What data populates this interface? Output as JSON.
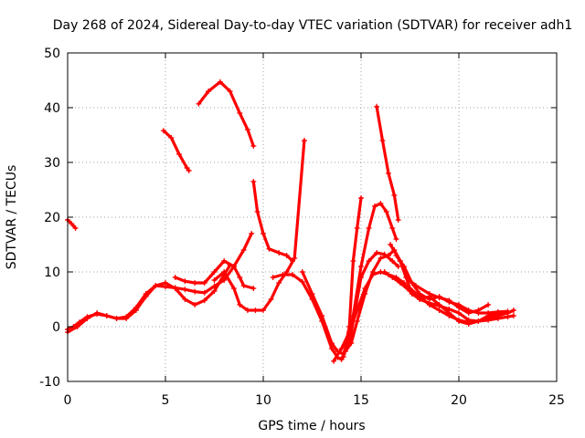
{
  "chart_data": {
    "type": "scatter",
    "title": "Day 268 of 2024, Sidereal Day-to-day VTEC variation (SDTVAR) for receiver adh1",
    "xlabel": "GPS time / hours",
    "ylabel": "SDTVAR / TECUs",
    "xlim": [
      0,
      25
    ],
    "ylim": [
      -10,
      50
    ],
    "xticks": [
      0,
      5,
      10,
      15,
      20,
      25
    ],
    "yticks": [
      -10,
      0,
      10,
      20,
      30,
      40,
      50
    ],
    "grid": true,
    "marker": "plus",
    "color": "#ff0000",
    "series": [
      {
        "name": "s1",
        "points": [
          [
            0,
            19.5
          ],
          [
            0.2,
            18.8
          ],
          [
            0.4,
            18
          ]
        ]
      },
      {
        "name": "s2",
        "points": [
          [
            0,
            -0.5
          ],
          [
            0.3,
            0
          ],
          [
            0.6,
            0.8
          ],
          [
            1,
            1.8
          ],
          [
            1.5,
            2.3
          ],
          [
            2,
            2
          ],
          [
            2.5,
            1.5
          ],
          [
            3,
            1.8
          ],
          [
            3.5,
            3.5
          ],
          [
            4,
            6
          ],
          [
            4.5,
            7.5
          ],
          [
            5,
            7.3
          ],
          [
            5.5,
            7.1
          ],
          [
            6,
            6.8
          ],
          [
            6.5,
            6.4
          ],
          [
            7,
            6.2
          ],
          [
            7.5,
            7.4
          ],
          [
            8,
            8.5
          ],
          [
            8.5,
            11
          ],
          [
            9,
            14
          ],
          [
            9.4,
            17
          ]
        ]
      },
      {
        "name": "s3",
        "points": [
          [
            0,
            -1
          ],
          [
            0.5,
            0
          ],
          [
            1,
            1.5
          ],
          [
            1.5,
            2.5
          ],
          [
            2,
            2
          ],
          [
            2.5,
            1.5
          ],
          [
            3,
            1.5
          ],
          [
            3.5,
            3
          ],
          [
            4,
            5.5
          ],
          [
            4.5,
            7.5
          ],
          [
            5,
            8
          ],
          [
            5.5,
            7
          ],
          [
            6,
            5
          ],
          [
            6.5,
            4
          ],
          [
            7,
            4.8
          ],
          [
            7.5,
            6.5
          ],
          [
            8,
            9.5
          ],
          [
            8.3,
            11.2
          ]
        ]
      },
      {
        "name": "s4",
        "points": [
          [
            4.9,
            35.8
          ],
          [
            5.3,
            34.5
          ],
          [
            5.7,
            31.5
          ],
          [
            6.1,
            29
          ],
          [
            6.2,
            28.5
          ]
        ]
      },
      {
        "name": "s5",
        "points": [
          [
            6.7,
            40.7
          ],
          [
            7.2,
            43
          ],
          [
            7.8,
            44.7
          ],
          [
            8.3,
            43
          ],
          [
            8.8,
            39
          ],
          [
            9.2,
            36
          ],
          [
            9.5,
            33
          ]
        ]
      },
      {
        "name": "s6",
        "points": [
          [
            5.5,
            9
          ],
          [
            6,
            8.3
          ],
          [
            6.5,
            8
          ],
          [
            7,
            8
          ],
          [
            7.5,
            10
          ],
          [
            8,
            12
          ],
          [
            8.5,
            11
          ],
          [
            8.8,
            9
          ],
          [
            9,
            7.5
          ],
          [
            9.5,
            7
          ]
        ]
      },
      {
        "name": "s7",
        "points": [
          [
            7.5,
            8.5
          ],
          [
            8,
            10
          ],
          [
            8.5,
            7
          ],
          [
            8.8,
            4
          ],
          [
            9.2,
            3
          ],
          [
            9.6,
            3
          ],
          [
            10,
            3
          ],
          [
            10.4,
            5
          ],
          [
            10.8,
            8
          ],
          [
            11.2,
            10
          ],
          [
            11.6,
            12.5
          ],
          [
            12.1,
            34
          ]
        ]
      },
      {
        "name": "s8",
        "points": [
          [
            9.5,
            26.5
          ],
          [
            9.7,
            21
          ],
          [
            10,
            17
          ],
          [
            10.3,
            14.2
          ],
          [
            10.8,
            13.5
          ],
          [
            11.2,
            13
          ],
          [
            11.5,
            12
          ]
        ]
      },
      {
        "name": "s9",
        "points": [
          [
            10.5,
            9
          ],
          [
            11,
            9.5
          ],
          [
            11.5,
            9.5
          ],
          [
            12,
            8.2
          ],
          [
            12.5,
            5
          ],
          [
            13,
            1
          ],
          [
            13.5,
            -4
          ],
          [
            13.8,
            -5.6
          ],
          [
            14,
            -6
          ],
          [
            14.3,
            -3.5
          ],
          [
            14.6,
            2
          ],
          [
            15,
            11
          ],
          [
            15.4,
            18
          ],
          [
            15.7,
            22
          ],
          [
            16,
            22.5
          ],
          [
            16.3,
            21
          ],
          [
            16.6,
            18
          ],
          [
            16.8,
            16
          ]
        ]
      },
      {
        "name": "s10",
        "points": [
          [
            12,
            10
          ],
          [
            12.5,
            6
          ],
          [
            13,
            2
          ],
          [
            13.5,
            -3
          ],
          [
            13.8,
            -4.5
          ],
          [
            14.1,
            -5
          ],
          [
            14.4,
            -3
          ],
          [
            14.7,
            3
          ],
          [
            15,
            9
          ],
          [
            15.4,
            12
          ],
          [
            15.8,
            13.5
          ],
          [
            16.2,
            13.2
          ],
          [
            16.6,
            12
          ],
          [
            16.9,
            11
          ]
        ]
      },
      {
        "name": "s11",
        "points": [
          [
            14.2,
            -4.5
          ],
          [
            14.5,
            -3
          ],
          [
            14.8,
            1
          ],
          [
            15.2,
            6
          ],
          [
            15.6,
            10
          ],
          [
            16,
            12.5
          ],
          [
            16.4,
            13
          ],
          [
            16.7,
            14
          ],
          [
            17,
            12
          ],
          [
            17.3,
            9
          ],
          [
            17.8,
            7.5
          ],
          [
            18.5,
            6
          ],
          [
            19,
            5.3
          ],
          [
            19.5,
            4.8
          ],
          [
            20,
            3.5
          ],
          [
            20.5,
            2.5
          ],
          [
            21,
            3
          ],
          [
            21.5,
            4
          ]
        ]
      },
      {
        "name": "s12",
        "points": [
          [
            14.1,
            -5.5
          ],
          [
            14.4,
            0
          ],
          [
            14.6,
            12
          ],
          [
            14.8,
            18
          ],
          [
            15,
            23.5
          ]
        ]
      },
      {
        "name": "s13",
        "points": [
          [
            15.8,
            40.2
          ],
          [
            16.1,
            34
          ],
          [
            16.4,
            28
          ],
          [
            16.7,
            24
          ],
          [
            16.9,
            19.5
          ]
        ]
      },
      {
        "name": "s14",
        "points": [
          [
            13.6,
            -6.3
          ],
          [
            14,
            -4
          ],
          [
            14.4,
            -1
          ],
          [
            14.8,
            3
          ],
          [
            15.2,
            7
          ],
          [
            15.6,
            9.5
          ],
          [
            16,
            10
          ],
          [
            16.4,
            9.5
          ],
          [
            16.8,
            9
          ],
          [
            17.2,
            8
          ],
          [
            17.6,
            6
          ],
          [
            18,
            5
          ],
          [
            18.5,
            4.3
          ],
          [
            19,
            3.8
          ],
          [
            19.5,
            3.2
          ],
          [
            20,
            2.5
          ],
          [
            20.5,
            1.2
          ],
          [
            21,
            1
          ],
          [
            21.5,
            1.5
          ],
          [
            22,
            2
          ],
          [
            22.5,
            2.5
          ],
          [
            22.8,
            3
          ]
        ]
      },
      {
        "name": "s15",
        "points": [
          [
            16.5,
            15
          ],
          [
            17,
            12
          ],
          [
            17.5,
            7
          ],
          [
            18,
            5.5
          ],
          [
            18.5,
            4
          ],
          [
            19,
            3
          ],
          [
            19.5,
            2
          ],
          [
            20,
            1.2
          ],
          [
            20.5,
            0.8
          ],
          [
            21,
            1
          ],
          [
            21.5,
            1.2
          ],
          [
            22,
            1.5
          ],
          [
            22.5,
            1.8
          ],
          [
            22.8,
            2
          ]
        ]
      },
      {
        "name": "s16",
        "points": [
          [
            16.2,
            10
          ],
          [
            16.6,
            9
          ],
          [
            17,
            8
          ],
          [
            17.5,
            6.5
          ],
          [
            18,
            5
          ],
          [
            18.5,
            5.5
          ],
          [
            19,
            4
          ],
          [
            19.5,
            2.5
          ],
          [
            20,
            1
          ],
          [
            20.5,
            0.5
          ],
          [
            21,
            1
          ],
          [
            21.5,
            2
          ],
          [
            22,
            2.5
          ],
          [
            22.5,
            2.5
          ]
        ]
      },
      {
        "name": "s17",
        "points": [
          [
            16.8,
            13
          ],
          [
            17.2,
            11
          ],
          [
            17.6,
            8
          ],
          [
            18,
            6
          ],
          [
            18.5,
            5
          ],
          [
            19,
            5.5
          ],
          [
            19.5,
            4.5
          ],
          [
            20,
            4
          ],
          [
            20.5,
            3
          ],
          [
            21,
            2.5
          ],
          [
            21.5,
            2.5
          ],
          [
            22,
            2.7
          ],
          [
            22.5,
            2.8
          ]
        ]
      }
    ]
  }
}
